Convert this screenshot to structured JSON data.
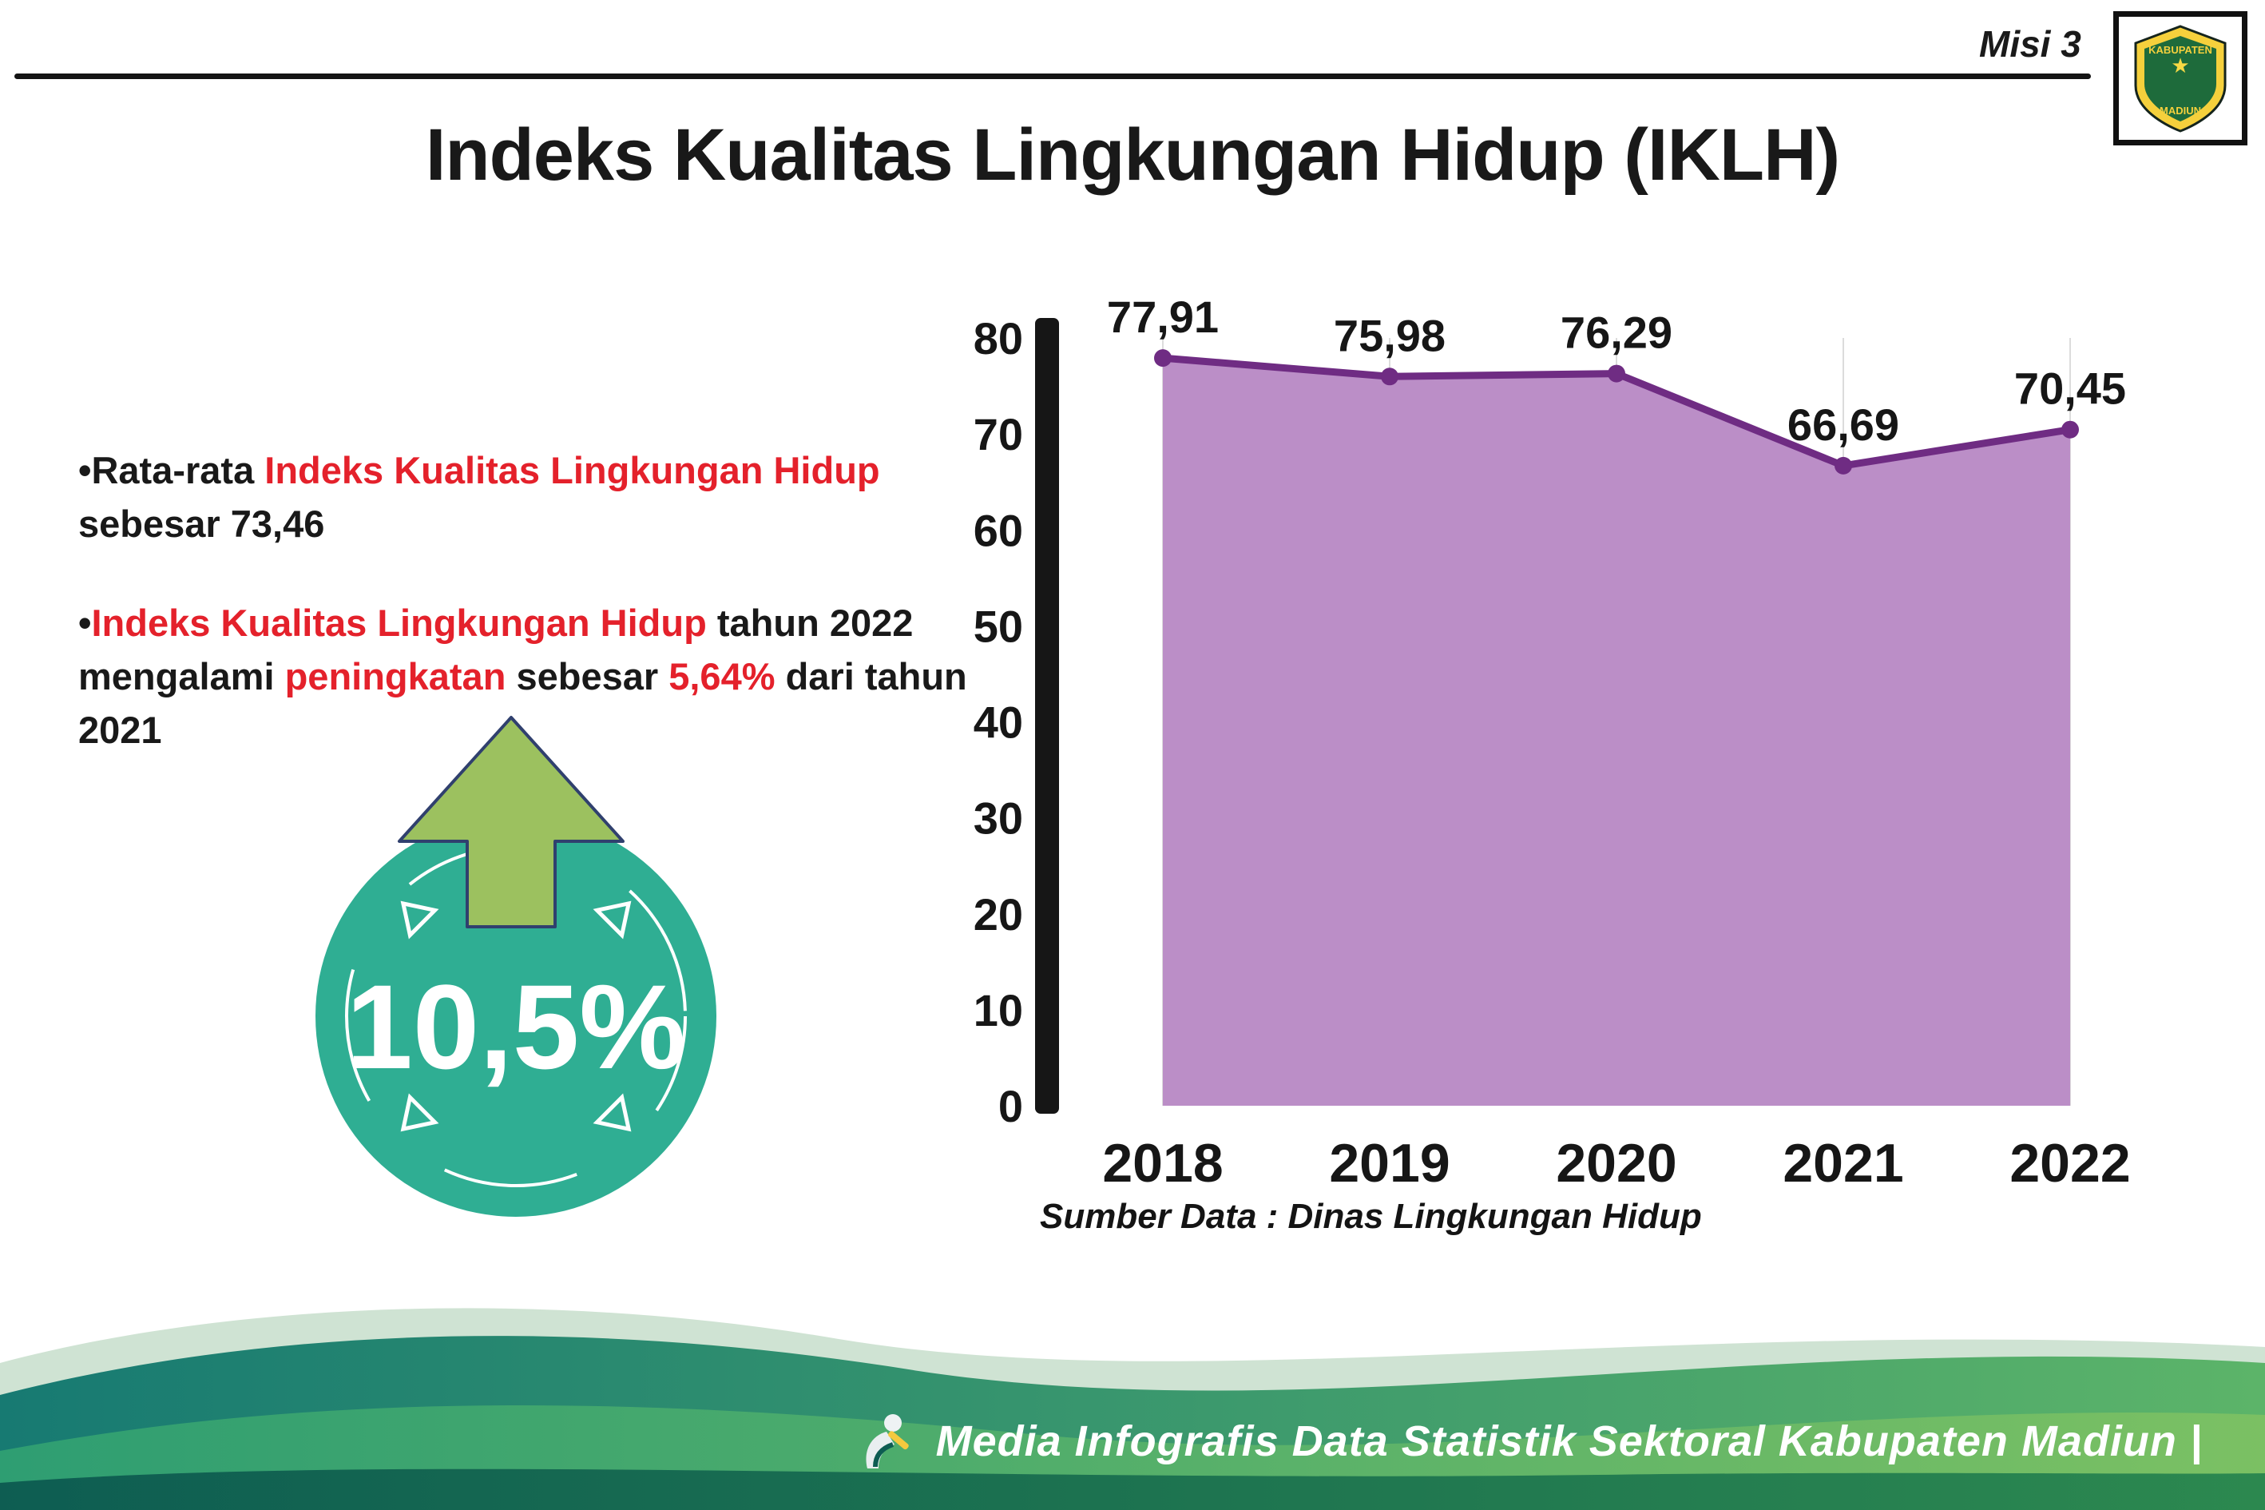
{
  "header": {
    "misi_label": "Misi 3",
    "title": "Indeks Kualitas Lingkungan Hidup (IKLH)",
    "logo": {
      "top_text": "KABUPATEN",
      "bottom_text": "MADIUN"
    }
  },
  "bullets": {
    "bullet_char": "•",
    "item1": {
      "seg1": "Rata-rata ",
      "seg2": "Indeks Kualitas Lingkungan Hidup",
      "seg3": " sebesar 73,46"
    },
    "item2": {
      "seg1": "Indeks Kualitas Lingkungan Hidup",
      "seg2": " tahun 2022 mengalami ",
      "seg3": "peningkatan",
      "seg4": " sebesar ",
      "seg5": "5,64%",
      "seg6": " dari tahun 2021"
    }
  },
  "badge": {
    "value": "10,5%"
  },
  "chart_data": {
    "type": "area",
    "title": "Indeks Kualitas Lingkungan Hidup (IKLH)",
    "categories": [
      "2018",
      "2019",
      "2020",
      "2021",
      "2022"
    ],
    "values": [
      77.91,
      75.98,
      76.29,
      66.69,
      70.45
    ],
    "value_labels": [
      "77,91",
      "75,98",
      "76,29",
      "66,69",
      "70,45"
    ],
    "ylim": [
      0,
      80
    ],
    "ytick_step": 10,
    "grid": "vertical-light",
    "legend": "none",
    "source": "Sumber Data : Dinas Lingkungan Hidup",
    "fill_color": "#bb8ec7",
    "line_color": "#6f2c83"
  },
  "footer": {
    "text": "Media Infografis Data Statistik Sektoral Kabupaten Madiun |"
  },
  "colors": {
    "red_highlight": "#e4212b",
    "badge_teal": "#2fae93",
    "arrow_green": "#9cc15f",
    "axis_black": "#161616",
    "wave_teal": "#177a72",
    "wave_green": "#63b65f"
  }
}
